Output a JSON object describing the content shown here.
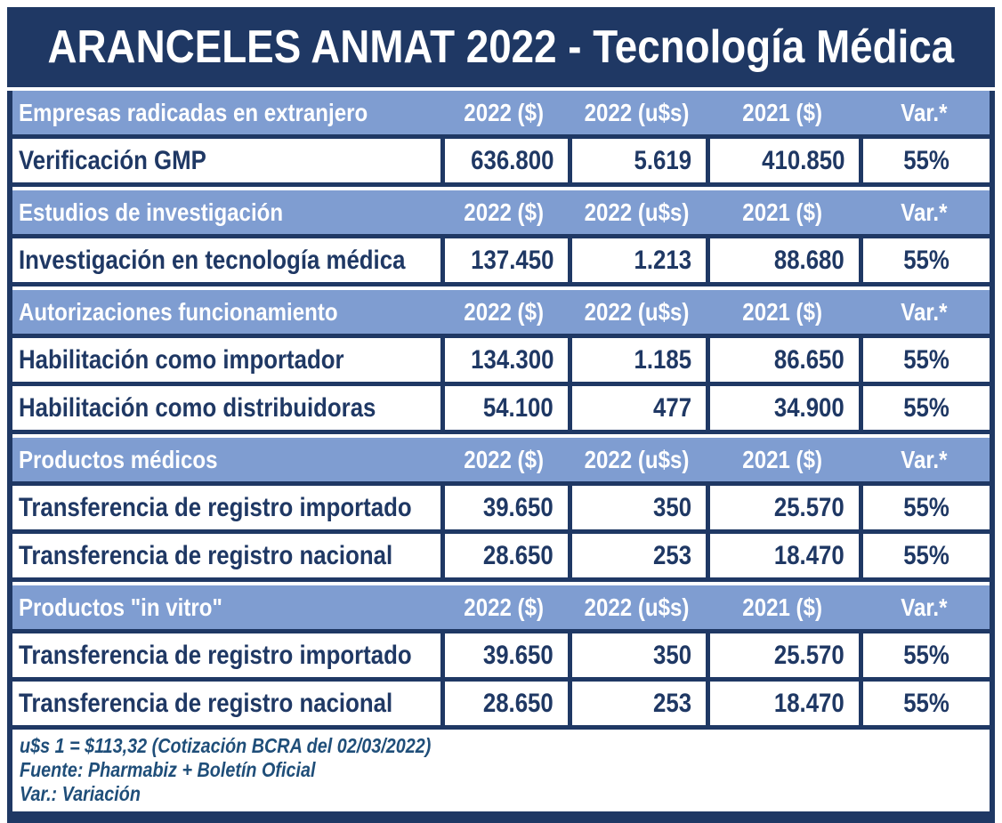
{
  "title": "ARANCELES ANMAT 2022 - Tecnología Médica",
  "colors": {
    "navy": "#1f3864",
    "band_blue": "#7f9dd1",
    "footnote_blue": "#1f4e79",
    "white": "#ffffff"
  },
  "chart_data": {
    "type": "table",
    "title": "ARANCELES ANMAT 2022 - Tecnología Médica",
    "columns": [
      "2022 ($)",
      "2022 (u$s)",
      "2021 ($)",
      "Var.*"
    ],
    "sections": [
      {
        "label": "Empresas radicadas en extranjero",
        "rows": [
          {
            "label": "Verificación GMP",
            "values": [
              "636.800",
              "5.619",
              "410.850",
              "55%"
            ]
          }
        ]
      },
      {
        "label": "Estudios de investigación",
        "rows": [
          {
            "label": "Investigación en tecnología médica",
            "values": [
              "137.450",
              "1.213",
              "88.680",
              "55%"
            ]
          }
        ]
      },
      {
        "label": "Autorizaciones funcionamiento",
        "rows": [
          {
            "label": "Habilitación como importador",
            "values": [
              "134.300",
              "1.185",
              "86.650",
              "55%"
            ]
          },
          {
            "label": "Habilitación como distribuidoras",
            "values": [
              "54.100",
              "477",
              "34.900",
              "55%"
            ]
          }
        ]
      },
      {
        "label": "Productos médicos",
        "rows": [
          {
            "label": "Transferencia de registro importado",
            "values": [
              "39.650",
              "350",
              "25.570",
              "55%"
            ]
          },
          {
            "label": "Transferencia de registro nacional",
            "values": [
              "28.650",
              "253",
              "18.470",
              "55%"
            ]
          }
        ]
      },
      {
        "label": "Productos \"in vitro\"",
        "rows": [
          {
            "label": "Transferencia de registro importado",
            "values": [
              "39.650",
              "350",
              "25.570",
              "55%"
            ]
          },
          {
            "label": "Transferencia de registro nacional",
            "values": [
              "28.650",
              "253",
              "18.470",
              "55%"
            ]
          }
        ]
      }
    ],
    "footnotes": [
      "u$s 1 = $113,32 (Cotización BCRA del 02/03/2022)",
      "Fuente: Pharmabiz + Boletín Oficial",
      "Var.: Variación"
    ]
  }
}
